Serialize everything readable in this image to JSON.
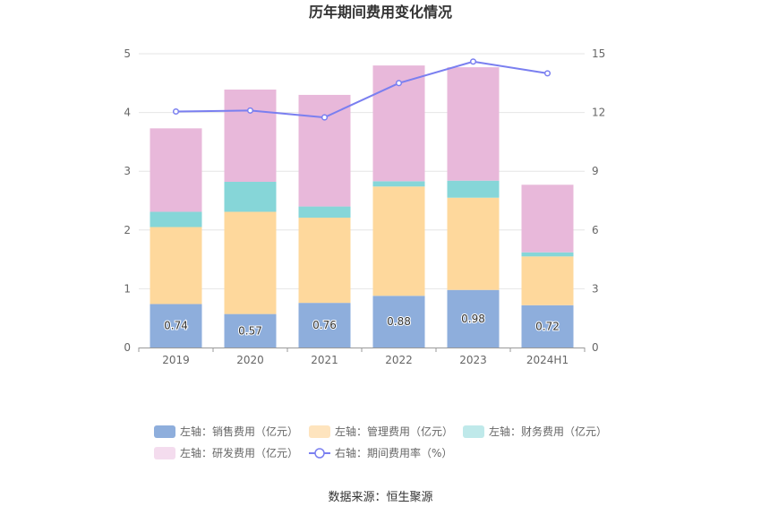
{
  "chart_data": {
    "type": "bar",
    "title": "历年期间费用变化情况",
    "categories": [
      "2019",
      "2020",
      "2021",
      "2022",
      "2023",
      "2024H1"
    ],
    "series": [
      {
        "name": "左轴：销售费用（亿元）",
        "axis": "left",
        "type": "bar",
        "color": "#8eaedc",
        "values": [
          0.74,
          0.57,
          0.76,
          0.88,
          0.98,
          0.72
        ],
        "labels": [
          "0.74",
          "0.57",
          "0.76",
          "0.88",
          "0.98",
          "0.72"
        ]
      },
      {
        "name": "左轴：管理费用（亿元）",
        "axis": "left",
        "type": "bar",
        "color": "#fed89c",
        "values": [
          1.31,
          1.74,
          1.45,
          1.86,
          1.57,
          0.83
        ]
      },
      {
        "name": "左轴：财务费用（亿元）",
        "axis": "left",
        "type": "bar",
        "color": "#86d6d8",
        "values": [
          0.26,
          0.51,
          0.19,
          0.09,
          0.29,
          0.07
        ]
      },
      {
        "name": "左轴：研发费用（亿元）",
        "axis": "left",
        "type": "bar",
        "color": "#e8b8da",
        "values": [
          1.42,
          1.57,
          1.9,
          1.97,
          1.93,
          1.15
        ]
      },
      {
        "name": "右轴：期间费用率（%）",
        "axis": "right",
        "type": "line",
        "color": "#7a7ff0",
        "values": [
          12.05,
          12.1,
          11.75,
          13.5,
          14.6,
          14.0
        ]
      }
    ],
    "yAxisLeft": {
      "min": 0,
      "max": 5,
      "ticks": [
        "0",
        "1",
        "2",
        "3",
        "4",
        "5"
      ]
    },
    "yAxisRight": {
      "min": 0,
      "max": 15,
      "ticks": [
        "0",
        "3",
        "6",
        "9",
        "12",
        "15"
      ]
    },
    "grid": true,
    "legend_position": "bottom"
  },
  "legend_colors": [
    "#8eaedc",
    "#fee4be",
    "#bfe9ea",
    "#f4dcee",
    "#7a7ff0"
  ],
  "source": "数据来源：恒生聚源"
}
